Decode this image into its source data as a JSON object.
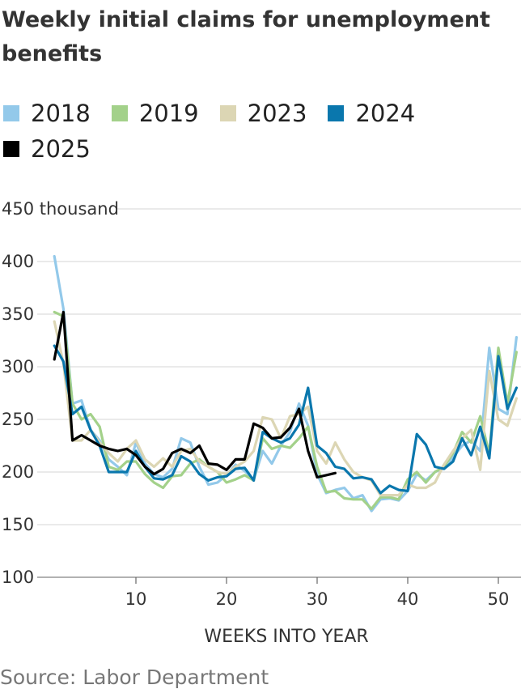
{
  "title": "Weekly initial claims for unemployment benefits",
  "source": "Source: Labor Department",
  "legend": [
    {
      "label": "2018",
      "color": "#93c9ea"
    },
    {
      "label": "2019",
      "color": "#a3d18a"
    },
    {
      "label": "2023",
      "color": "#dcd6b4"
    },
    {
      "label": "2024",
      "color": "#0a77ad"
    },
    {
      "label": "2025",
      "color": "#000000"
    }
  ],
  "chart_data": {
    "type": "line",
    "title": "Weekly initial claims for unemployment benefits",
    "xlabel": "WEEKS INTO YEAR",
    "ylabel": "",
    "y_unit_label": "450 thousand",
    "xlim": [
      1,
      52
    ],
    "ylim": [
      100,
      450
    ],
    "x_ticks": [
      10,
      20,
      30,
      40,
      50
    ],
    "y_ticks": [
      100,
      150,
      200,
      250,
      300,
      350,
      400,
      450
    ],
    "y_tick_labels": [
      "100",
      "150",
      "200",
      "250",
      "300",
      "350",
      "400",
      "450 thousand"
    ],
    "grid": "horizontal",
    "legend_position": "top",
    "series": [
      {
        "name": "2018",
        "color": "#93c9ea",
        "x_start": 1,
        "values": [
          405,
          355,
          265,
          268,
          240,
          230,
          212,
          205,
          197,
          228,
          208,
          198,
          195,
          203,
          232,
          228,
          205,
          188,
          190,
          197,
          207,
          201,
          193,
          220,
          208,
          225,
          238,
          265,
          244,
          198,
          180,
          183,
          185,
          175,
          178,
          163,
          174,
          175,
          173,
          182,
          198,
          192,
          200,
          204,
          214,
          225,
          230,
          220,
          318,
          260,
          255,
          328
        ]
      },
      {
        "name": "2019",
        "color": "#a3d18a",
        "x_start": 1,
        "values": [
          352,
          348,
          265,
          250,
          255,
          243,
          205,
          202,
          210,
          210,
          198,
          190,
          185,
          196,
          197,
          208,
          212,
          205,
          200,
          190,
          193,
          197,
          192,
          232,
          222,
          225,
          223,
          232,
          243,
          205,
          181,
          182,
          175,
          174,
          174,
          165,
          176,
          176,
          174,
          193,
          200,
          190,
          200,
          205,
          218,
          238,
          228,
          253,
          217,
          318,
          265,
          314
        ]
      },
      {
        "name": "2023",
        "color": "#dcd6b4",
        "x_start": 1,
        "values": [
          343,
          303,
          230,
          230,
          240,
          228,
          218,
          210,
          222,
          230,
          212,
          205,
          213,
          205,
          220,
          222,
          210,
          205,
          200,
          198,
          205,
          210,
          220,
          252,
          250,
          232,
          253,
          255,
          262,
          220,
          208,
          228,
          212,
          200,
          195,
          192,
          178,
          178,
          178,
          188,
          185,
          185,
          190,
          207,
          220,
          232,
          240,
          202,
          296,
          250,
          244,
          270
        ]
      },
      {
        "name": "2024",
        "color": "#0a77ad",
        "x_start": 1,
        "values": [
          320,
          305,
          255,
          262,
          240,
          225,
          200,
          200,
          200,
          220,
          205,
          194,
          193,
          197,
          215,
          210,
          198,
          192,
          195,
          196,
          203,
          204,
          192,
          238,
          232,
          228,
          232,
          245,
          280,
          225,
          218,
          205,
          203,
          194,
          195,
          193,
          180,
          187,
          183,
          182,
          236,
          226,
          205,
          203,
          210,
          232,
          216,
          243,
          213,
          310,
          260,
          280
        ]
      },
      {
        "name": "2025",
        "color": "#000000",
        "x_start": 1,
        "values": [
          307,
          352,
          230,
          235,
          230,
          225,
          222,
          220,
          222,
          216,
          205,
          198,
          203,
          218,
          222,
          218,
          225,
          208,
          207,
          202,
          212,
          212,
          246,
          242,
          232,
          233,
          242,
          260,
          220,
          195,
          197,
          199
        ]
      }
    ]
  }
}
